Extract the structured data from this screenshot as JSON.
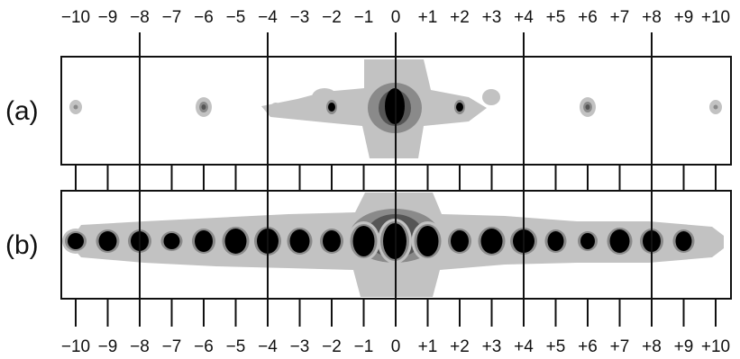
{
  "axis": {
    "top_labels": [
      "−10",
      "−9",
      "−8",
      "−7",
      "−6",
      "−5",
      "−4",
      "−3",
      "−2",
      "−1",
      "0",
      "+1",
      "+2",
      "+3",
      "+4",
      "+5",
      "+6",
      "+7",
      "+8",
      "+9",
      "+10"
    ],
    "bottom_labels": [
      "−10",
      "−9",
      "−8",
      "−7",
      "−6",
      "−5",
      "−4",
      "−3",
      "−2",
      "−1",
      "0",
      "+1",
      "+2",
      "+3",
      "+4",
      "+5",
      "+6",
      "+7",
      "+8",
      "+9",
      "+10"
    ],
    "major_orders": [
      -8,
      -4,
      0,
      4,
      8
    ]
  },
  "panels": [
    {
      "label": "(a)",
      "spots": [
        {
          "order": -10,
          "level": "light"
        },
        {
          "order": -6,
          "level": "mid"
        },
        {
          "order": -2,
          "level": "strong"
        },
        {
          "order": 0,
          "level": "max"
        },
        {
          "order": 2,
          "level": "strong"
        },
        {
          "order": 6,
          "level": "mid"
        },
        {
          "order": 10,
          "level": "light"
        }
      ]
    },
    {
      "label": "(b)",
      "spots": [
        {
          "order": -10,
          "level": "strong"
        },
        {
          "order": -9,
          "level": "strong"
        },
        {
          "order": -8,
          "level": "strong"
        },
        {
          "order": -7,
          "level": "strong"
        },
        {
          "order": -6,
          "level": "strong"
        },
        {
          "order": -5,
          "level": "strong"
        },
        {
          "order": -4,
          "level": "strong"
        },
        {
          "order": -3,
          "level": "strong"
        },
        {
          "order": -2,
          "level": "strong"
        },
        {
          "order": -1,
          "level": "max"
        },
        {
          "order": 0,
          "level": "max"
        },
        {
          "order": 1,
          "level": "max"
        },
        {
          "order": 2,
          "level": "strong"
        },
        {
          "order": 3,
          "level": "strong"
        },
        {
          "order": 4,
          "level": "strong"
        },
        {
          "order": 5,
          "level": "strong"
        },
        {
          "order": 6,
          "level": "strong"
        },
        {
          "order": 7,
          "level": "strong"
        },
        {
          "order": 8,
          "level": "strong"
        },
        {
          "order": 9,
          "level": "strong"
        },
        {
          "order": 10,
          "level": "light"
        }
      ]
    }
  ],
  "colors": {
    "background": "#ffffff",
    "light_gray": "#c2c2c2",
    "mid_gray": "#8a8a8a",
    "dark_gray": "#555555",
    "core": "#000000",
    "frame": "#111111"
  }
}
